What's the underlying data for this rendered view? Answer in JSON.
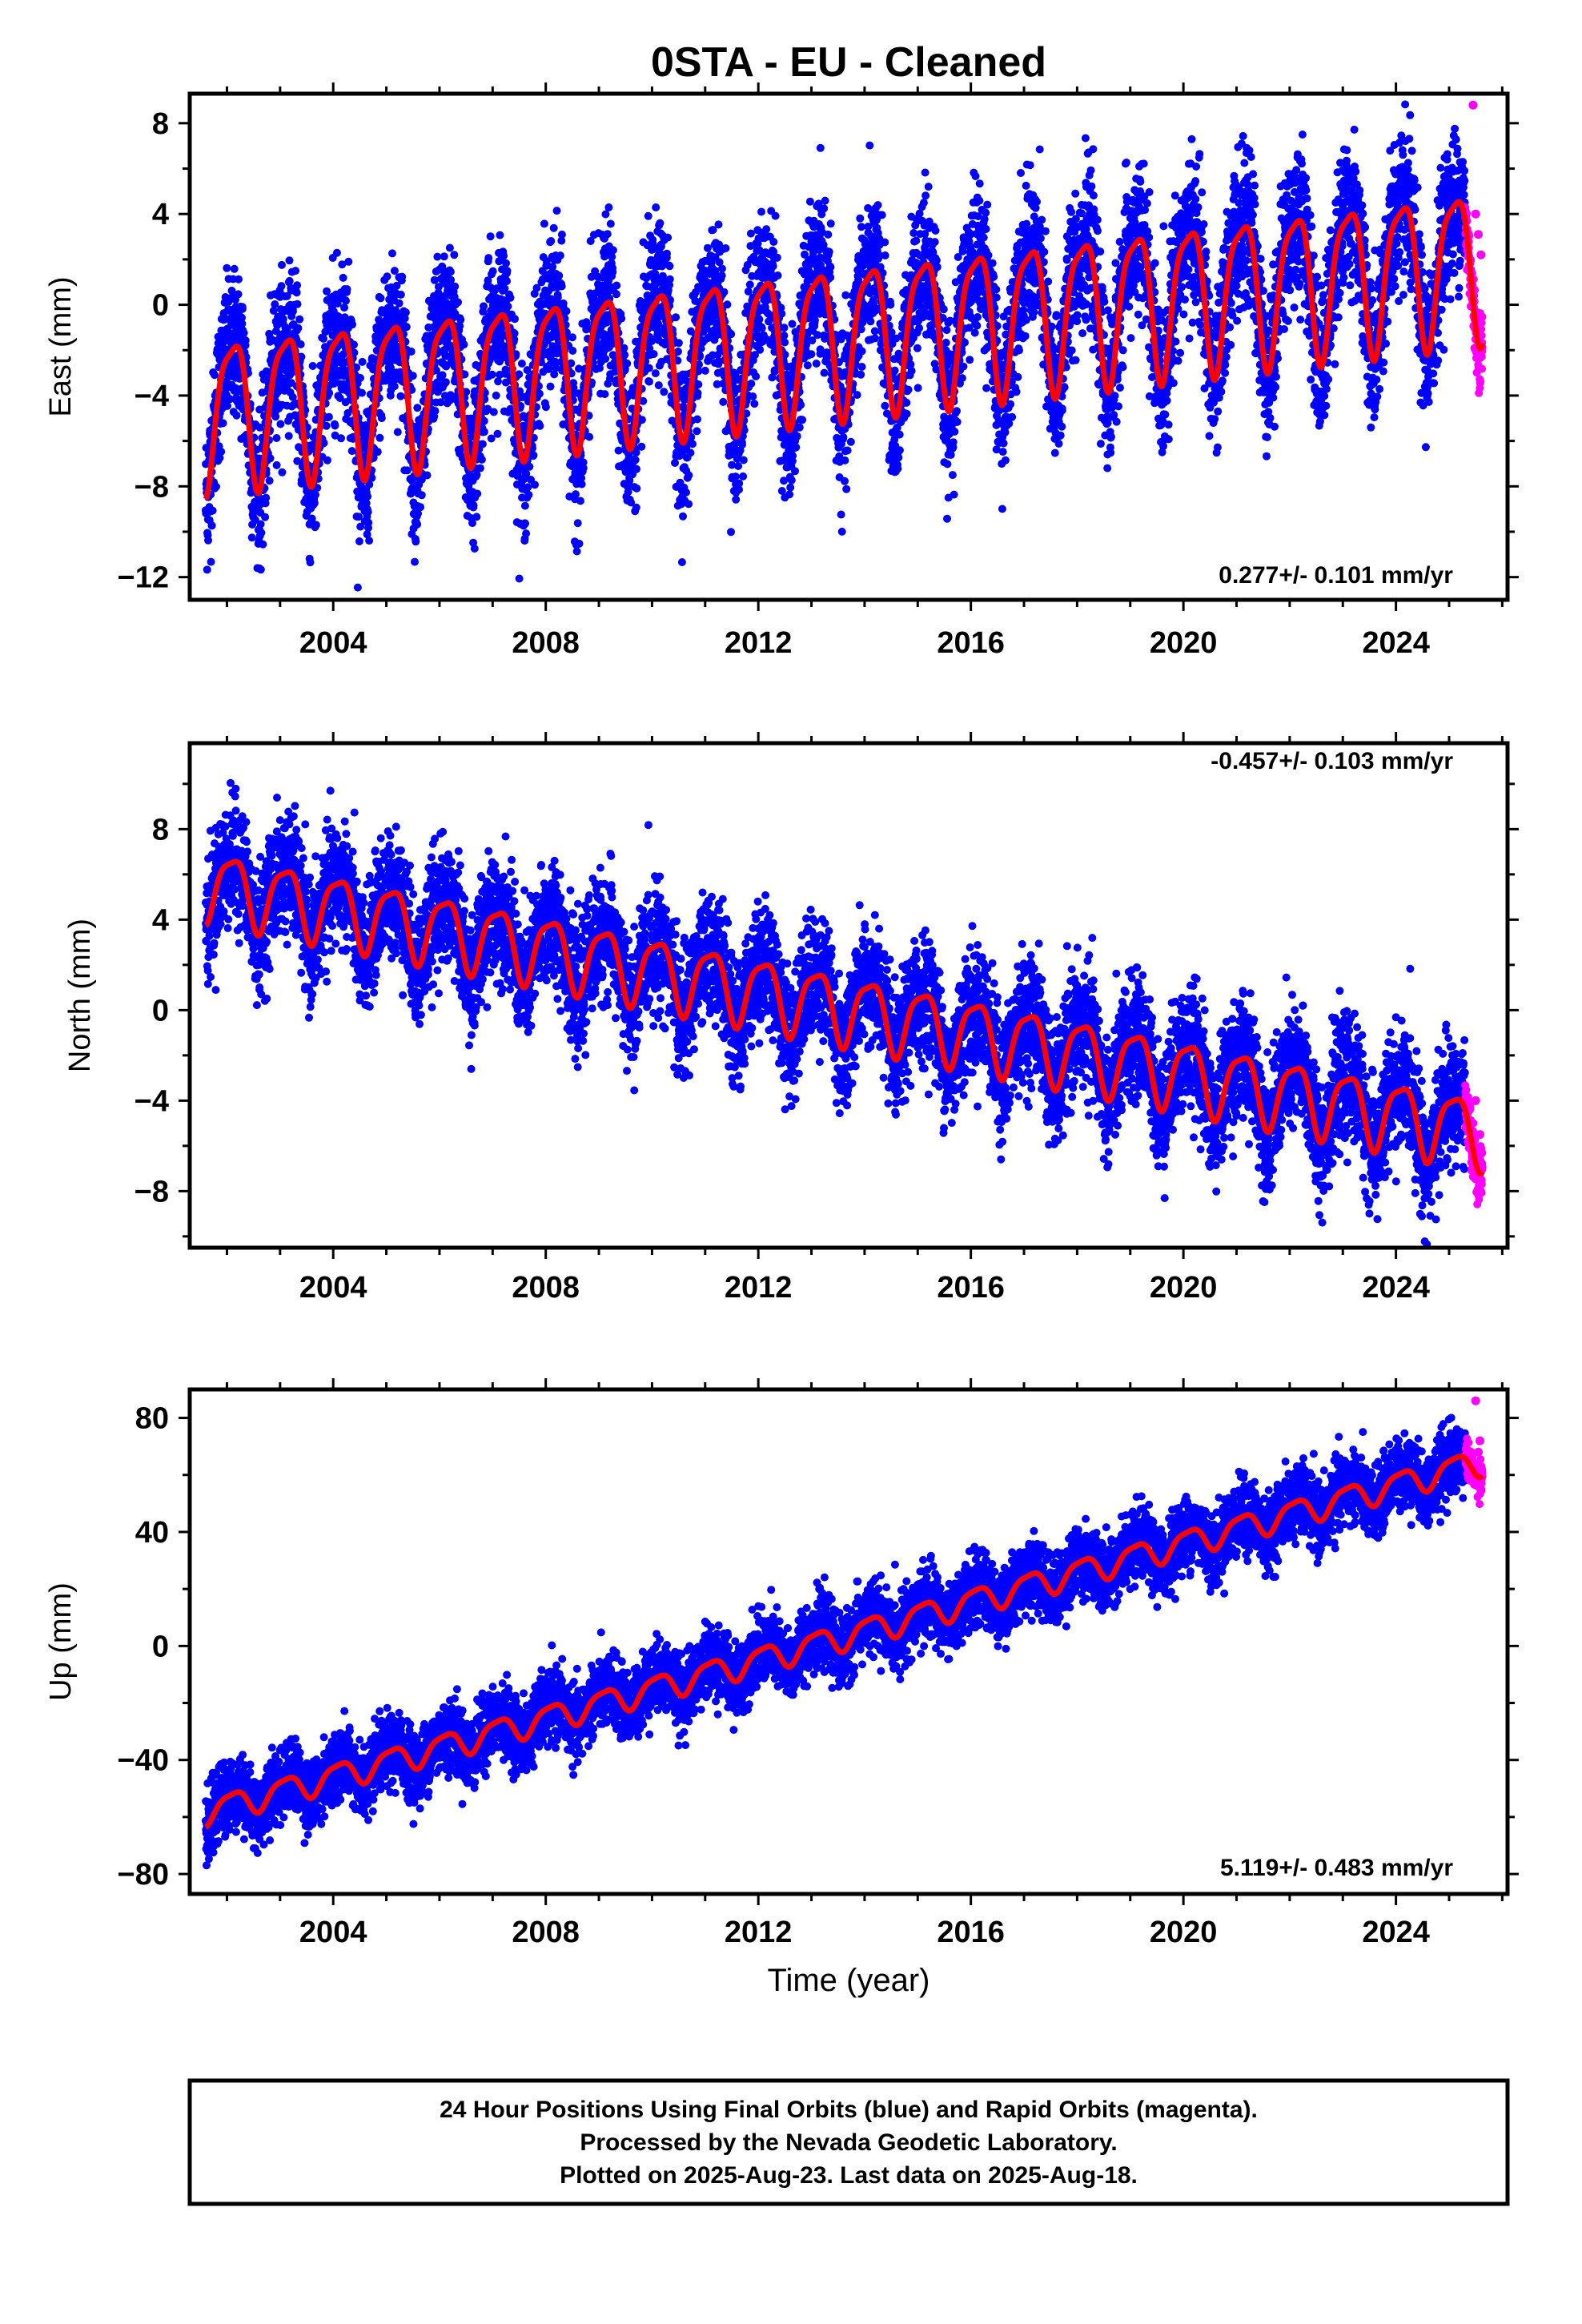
{
  "title": "0STA  - EU - Cleaned",
  "xlabel": "Time (year)",
  "footer": [
    "24 Hour Positions Using Final Orbits (blue) and Rapid Orbits (magenta).",
    "Processed by the Nevada Geodetic Laboratory.",
    "Plotted on 2025-Aug-23. Last data on 2025-Aug-18."
  ],
  "colors": {
    "final": "#0000ff",
    "rapid": "#ff00ff",
    "model": "#ff0000"
  },
  "chart_data": [
    {
      "type": "scatter",
      "ylabel": "East (mm)",
      "rate_label": "0.277+/- 0.101 mm/yr",
      "xlim": [
        2001.3,
        2026.1
      ],
      "ylim": [
        -13,
        9.3
      ],
      "xticks": [
        "2004",
        "2008",
        "2012",
        "2016",
        "2020",
        "2024"
      ],
      "yticks": [
        "8",
        "4",
        "0",
        "−4",
        "−8",
        "−12"
      ],
      "rate_mm_per_yr": 0.277,
      "model_start": -4.6,
      "annual_amplitude": 3.2,
      "noise_mm": 1.6,
      "series": [
        {
          "name": "Final Orbits",
          "color": "#0000ff",
          "x_range": [
            2001.6,
            2025.3
          ]
        },
        {
          "name": "Rapid Orbits",
          "color": "#ff00ff",
          "x_range": [
            2025.3,
            2025.63
          ],
          "points": [
            [
              2025.45,
              8.8
            ],
            [
              2025.5,
              4.0
            ],
            [
              2025.55,
              3.1
            ],
            [
              2025.6,
              2.2
            ],
            [
              2025.58,
              -1.0
            ]
          ]
        }
      ]
    },
    {
      "type": "scatter",
      "ylabel": "North (mm)",
      "rate_label": "-0.457+/- 0.103 mm/yr",
      "xlim": [
        2001.3,
        2026.1
      ],
      "ylim": [
        -10.5,
        11.8
      ],
      "xticks": [
        "2004",
        "2008",
        "2012",
        "2016",
        "2020",
        "2024"
      ],
      "yticks": [
        "8",
        "4",
        "0",
        "−4",
        "−8"
      ],
      "rate_mm_per_yr": -0.457,
      "model_start": 5.6,
      "annual_amplitude": 1.5,
      "noise_mm": 1.3,
      "series": [
        {
          "name": "Final Orbits",
          "color": "#0000ff",
          "x_range": [
            2001.6,
            2025.3
          ]
        },
        {
          "name": "Rapid Orbits",
          "color": "#ff00ff",
          "x_range": [
            2025.3,
            2025.63
          ],
          "points": [
            [
              2025.5,
              -4.0
            ],
            [
              2025.55,
              -6.5
            ],
            [
              2025.6,
              -7.5
            ],
            [
              2025.58,
              -5.5
            ]
          ]
        }
      ]
    },
    {
      "type": "scatter",
      "ylabel": "Up (mm)",
      "rate_label": "5.119+/- 0.483 mm/yr",
      "xlim": [
        2001.3,
        2026.1
      ],
      "ylim": [
        -87,
        90
      ],
      "xticks": [
        "2004",
        "2008",
        "2012",
        "2016",
        "2020",
        "2024"
      ],
      "yticks": [
        "80",
        "40",
        "0",
        "−40",
        "−80"
      ],
      "rate_mm_per_yr": 5.119,
      "model_start": -58,
      "annual_amplitude": 4.5,
      "noise_mm": 6,
      "series": [
        {
          "name": "Final Orbits",
          "color": "#0000ff",
          "x_range": [
            2001.6,
            2025.3
          ]
        },
        {
          "name": "Rapid Orbits",
          "color": "#ff00ff",
          "x_range": [
            2025.3,
            2025.63
          ],
          "points": [
            [
              2025.5,
              86
            ],
            [
              2025.55,
              68
            ],
            [
              2025.6,
              63
            ],
            [
              2025.58,
              72
            ]
          ]
        }
      ]
    }
  ]
}
